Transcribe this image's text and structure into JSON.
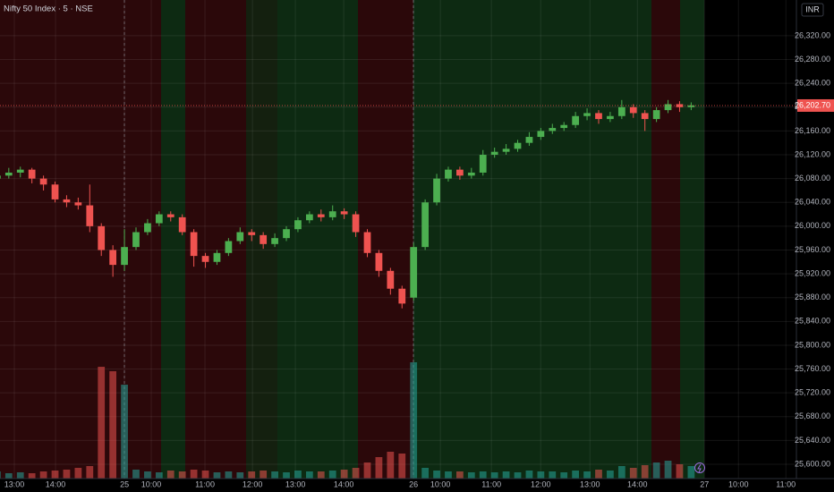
{
  "chart_data": {
    "type": "candlestick",
    "title": "Nifty 50 Index · 5 · NSE",
    "currency": "INR",
    "open": [
      26080,
      26085,
      26090,
      26095,
      26080,
      26070,
      26045,
      26040,
      26035,
      26000,
      25960,
      25935,
      25965,
      25990,
      26005,
      26020,
      26015,
      25990,
      25950,
      25940,
      25955,
      25975,
      25990,
      25985,
      25970,
      25980,
      25995,
      26010,
      26020,
      26015,
      26025,
      26020,
      25990,
      25955,
      25925,
      25895,
      25880,
      25965,
      26040,
      26080,
      26095,
      26085,
      26090,
      26120,
      26125,
      26130,
      26140,
      26150,
      26160,
      26165,
      26170,
      26185,
      26190,
      26180,
      26185,
      26200,
      26190,
      26180,
      26195,
      26205,
      26200
    ],
    "high": [
      26093,
      26098,
      26100,
      26098,
      26085,
      26075,
      26052,
      26048,
      26070,
      26005,
      25968,
      25995,
      25998,
      26012,
      26025,
      26025,
      26020,
      25995,
      25955,
      25960,
      25980,
      25998,
      25995,
      25990,
      25988,
      26000,
      26015,
      26025,
      26028,
      26035,
      26030,
      26025,
      25995,
      25960,
      25930,
      25900,
      25972,
      26045,
      26088,
      26100,
      26100,
      26098,
      26128,
      26132,
      26138,
      26145,
      26158,
      26165,
      26172,
      26175,
      26192,
      26198,
      26195,
      26192,
      26212,
      26205,
      26195,
      26200,
      26212,
      26210,
      26208
    ],
    "low": [
      26075,
      26080,
      26082,
      26072,
      26060,
      26040,
      26032,
      26028,
      25990,
      25950,
      25915,
      25925,
      25960,
      25985,
      26000,
      26008,
      25985,
      25932,
      25930,
      25935,
      25950,
      25970,
      25975,
      25962,
      25965,
      25975,
      25990,
      26005,
      26008,
      26010,
      26012,
      25982,
      25948,
      25915,
      25885,
      25862,
      25875,
      25960,
      26035,
      26075,
      26078,
      26080,
      26085,
      26115,
      26120,
      26125,
      26135,
      26145,
      26155,
      26160,
      26165,
      26178,
      26172,
      26175,
      26180,
      26182,
      26160,
      26175,
      26190,
      26192,
      26195
    ],
    "close": [
      26085,
      26090,
      26095,
      26080,
      26070,
      26045,
      26040,
      26035,
      26000,
      25960,
      25935,
      25965,
      25990,
      26005,
      26020,
      26015,
      25990,
      25950,
      25940,
      25955,
      25975,
      25990,
      25985,
      25970,
      25980,
      25995,
      26010,
      26020,
      26015,
      26025,
      26020,
      25990,
      25955,
      25925,
      25895,
      25870,
      25965,
      26040,
      26080,
      26095,
      26085,
      26090,
      26120,
      26125,
      26130,
      26140,
      26150,
      26160,
      26165,
      26170,
      26185,
      26190,
      26180,
      26185,
      26200,
      26190,
      26180,
      26195,
      26205,
      26200,
      26203
    ],
    "volume": [
      8,
      6,
      7,
      6,
      8,
      9,
      10,
      12,
      14,
      125,
      120,
      105,
      10,
      8,
      7,
      9,
      8,
      10,
      9,
      7,
      8,
      7,
      8,
      9,
      8,
      7,
      9,
      8,
      8,
      9,
      10,
      12,
      18,
      24,
      30,
      28,
      130,
      12,
      9,
      8,
      8,
      7,
      8,
      7,
      8,
      7,
      9,
      8,
      8,
      7,
      9,
      8,
      10,
      9,
      14,
      12,
      15,
      18,
      20,
      16,
      14
    ],
    "xlim": [
      0.24,
      69.1
    ],
    "xticks": [
      {
        "value": 1.48,
        "label": "13:00"
      },
      {
        "value": 5.04,
        "label": "14:00"
      },
      {
        "value": 11,
        "label": "25"
      },
      {
        "value": 13.32,
        "label": "10:00"
      },
      {
        "value": 17.96,
        "label": "11:00"
      },
      {
        "value": 22.07,
        "label": "12:00"
      },
      {
        "value": 25.78,
        "label": "13:00"
      },
      {
        "value": 29.96,
        "label": "14:00"
      },
      {
        "value": 36,
        "label": "26"
      },
      {
        "value": 38.32,
        "label": "10:00"
      },
      {
        "value": 42.73,
        "label": "11:00"
      },
      {
        "value": 46.99,
        "label": "12:00"
      },
      {
        "value": 51.25,
        "label": "13:00"
      },
      {
        "value": 55.35,
        "label": "14:00"
      },
      {
        "value": 61.15,
        "label": "27"
      },
      {
        "value": 64.09,
        "label": "10:00"
      },
      {
        "value": 68.19,
        "label": "11:00"
      }
    ],
    "ylim": [
      25576,
      26380
    ],
    "yticks": [
      {
        "value": 25600,
        "label": "25,600.00"
      },
      {
        "value": 25640,
        "label": "25,640.00"
      },
      {
        "value": 25680,
        "label": "25,680.00"
      },
      {
        "value": 25720,
        "label": "25,720.00"
      },
      {
        "value": 25760,
        "label": "25,760.00"
      },
      {
        "value": 25800,
        "label": "25,800.00"
      },
      {
        "value": 25840,
        "label": "25,840.00"
      },
      {
        "value": 25880,
        "label": "25,880.00"
      },
      {
        "value": 25920,
        "label": "25,920.00"
      },
      {
        "value": 25960,
        "label": "25,960.00"
      },
      {
        "value": 26000,
        "label": "26,000.00"
      },
      {
        "value": 26040,
        "label": "26,040.00"
      },
      {
        "value": 26080,
        "label": "26,080.00"
      },
      {
        "value": 26120,
        "label": "26,120.00"
      },
      {
        "value": 26160,
        "label": "26,160.00"
      },
      {
        "value": 26200,
        "label": "26,200.00"
      },
      {
        "value": 26240,
        "label": "26,240.00"
      },
      {
        "value": 26280,
        "label": "26,280.00"
      },
      {
        "value": 26320,
        "label": "26,320.00"
      }
    ],
    "last_price": {
      "value": 26202.7,
      "label": "26,202.70"
    },
    "up_color": "#4caf50",
    "down_color": "#ef5350",
    "grid": true
  }
}
